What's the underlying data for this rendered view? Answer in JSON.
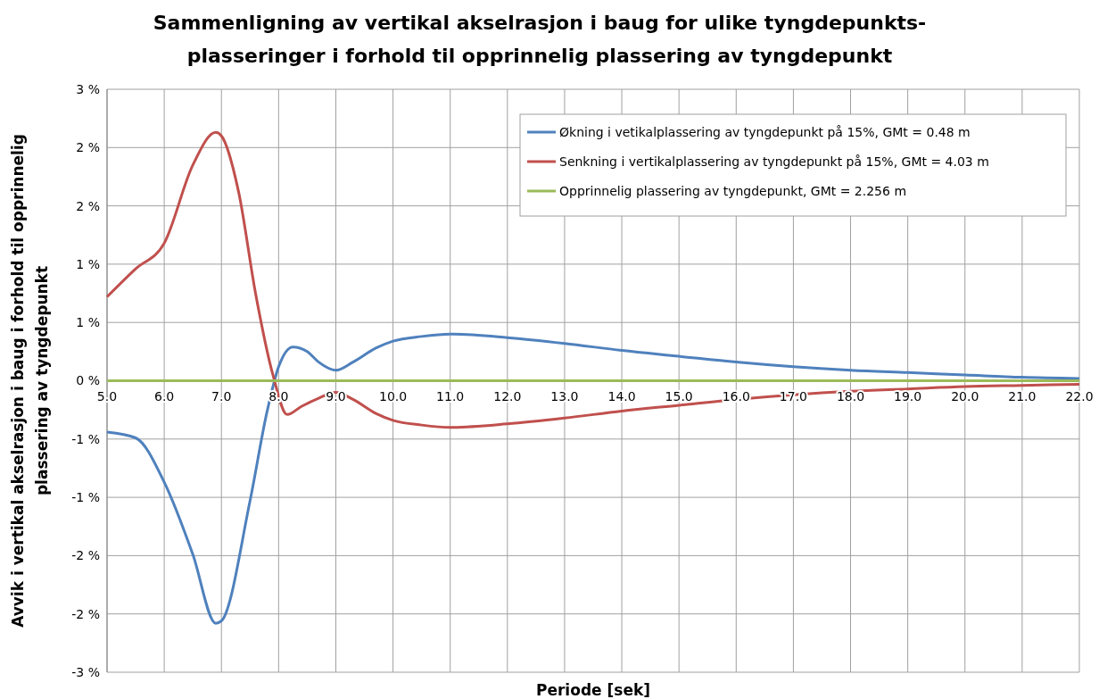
{
  "chart_data": {
    "type": "line",
    "title": "Sammenligning av vertikal akselrasjon i baug for ulike tyngdepunkts-\nplasseringer i forhold til opprinnelig plassering av tyngdepunkt",
    "xlabel": "Periode [sek]",
    "ylabel": "Avvik i vertikal akselrasjon i baug i forhold til opprinnelig\nplassering av tyngdepunkt",
    "xlim": [
      5,
      22
    ],
    "xticks": [
      {
        "value": 5,
        "label": "5.0"
      },
      {
        "value": 6,
        "label": "6.0"
      },
      {
        "value": 7,
        "label": "7.0"
      },
      {
        "value": 8,
        "label": "8.0"
      },
      {
        "value": 9,
        "label": "9.0"
      },
      {
        "value": 10,
        "label": "10.0"
      },
      {
        "value": 11,
        "label": "11.0"
      },
      {
        "value": 12,
        "label": "12.0"
      },
      {
        "value": 13,
        "label": "13.0"
      },
      {
        "value": 14,
        "label": "14.0"
      },
      {
        "value": 15,
        "label": "15.0"
      },
      {
        "value": 16,
        "label": "16.0"
      },
      {
        "value": 17,
        "label": "17.0"
      },
      {
        "value": 18,
        "label": "18.0"
      },
      {
        "value": 19,
        "label": "19.0"
      },
      {
        "value": 20,
        "label": "20.0"
      },
      {
        "value": 21,
        "label": "21.0"
      },
      {
        "value": 22,
        "label": "22.0"
      }
    ],
    "ylim": [
      -2.5,
      2.5
    ],
    "yticks": [
      {
        "value": -2.5,
        "label": "-3 %"
      },
      {
        "value": -2,
        "label": "-2 %"
      },
      {
        "value": -1.5,
        "label": "-2 %"
      },
      {
        "value": -1,
        "label": "-1 %"
      },
      {
        "value": -0.5,
        "label": "-1 %"
      },
      {
        "value": 0,
        "label": "0 %"
      },
      {
        "value": 0.5,
        "label": "1 %"
      },
      {
        "value": 1,
        "label": "1 %"
      },
      {
        "value": 1.5,
        "label": "2 %"
      },
      {
        "value": 2,
        "label": "2 %"
      },
      {
        "value": 2.5,
        "label": "3 %"
      }
    ],
    "grid": true,
    "legend": "top right",
    "marker": "none",
    "line_style": "solid",
    "series": [
      {
        "name": "Økning i vetikalplassering av tyngdepunkt  på 15%,  GMt = 0.48 m",
        "color": "#4f81bd",
        "x": [
          5,
          5.5,
          6,
          6.5,
          6.9,
          7,
          7.5,
          7.8,
          8,
          8.25,
          8.5,
          8.7,
          9,
          9.3,
          9.7,
          10,
          10.5,
          11,
          12,
          13,
          14,
          15,
          16,
          17,
          18,
          19,
          20,
          21,
          22
        ],
        "values": [
          -0.44,
          -0.49,
          -0.87,
          -1.49,
          -2.08,
          -2.06,
          -1.03,
          -0.26,
          0.12,
          0.29,
          0.25,
          0.16,
          0.09,
          0.16,
          0.28,
          0.34,
          0.38,
          0.4,
          0.37,
          0.32,
          0.26,
          0.21,
          0.16,
          0.12,
          0.09,
          0.07,
          0.05,
          0.03,
          0.02
        ]
      },
      {
        "name": "Senkning i vertikalplassering av tyngdepunkt på 15%, GMt = 4.03 m",
        "color": "#c0504d",
        "x": [
          5,
          5.5,
          6,
          6.5,
          6.9,
          7,
          7.3,
          7.6,
          7.9,
          8.15,
          8.4,
          8.7,
          9,
          9.3,
          9.7,
          10,
          10.5,
          11,
          12,
          13,
          14,
          15,
          16,
          17,
          18,
          19,
          20,
          21,
          22
        ],
        "values": [
          0.72,
          0.96,
          1.18,
          1.85,
          2.13,
          2.1,
          1.62,
          0.74,
          0.05,
          -0.29,
          -0.22,
          -0.15,
          -0.1,
          -0.16,
          -0.28,
          -0.34,
          -0.38,
          -0.4,
          -0.37,
          -0.32,
          -0.26,
          -0.21,
          -0.16,
          -0.12,
          -0.09,
          -0.07,
          -0.05,
          -0.04,
          -0.03
        ]
      },
      {
        "name": "Opprinnelig plassering av tyngdepunkt,  GMt = 2.256 m",
        "color": "#9bbb59",
        "x": [
          5,
          22
        ],
        "values": [
          0,
          0
        ]
      }
    ]
  }
}
